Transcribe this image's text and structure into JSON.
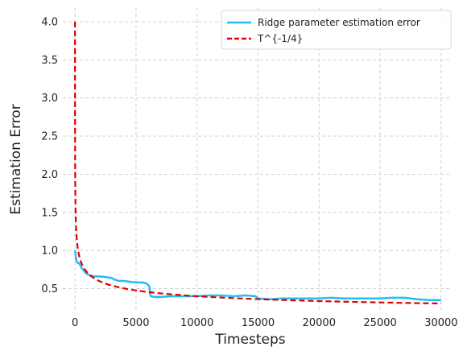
{
  "chart_data": {
    "type": "line",
    "title": "",
    "xlabel": "Timesteps",
    "ylabel": "Estimation Error",
    "xlim": [
      -1000,
      30800
    ],
    "ylim": [
      0.22,
      4.18
    ],
    "xticks": [
      0,
      5000,
      10000,
      15000,
      20000,
      25000,
      30000
    ],
    "yticks": [
      0.5,
      1.0,
      1.5,
      2.0,
      2.5,
      3.0,
      3.5,
      4.0
    ],
    "grid": true,
    "legend_position": "top-right",
    "series": [
      {
        "name": "Ridge parameter estimation error",
        "color": "#1ec0f5",
        "style": "solid",
        "x": [
          0,
          50,
          100,
          200,
          350,
          500,
          700,
          900,
          1100,
          1300,
          1600,
          2000,
          2500,
          3000,
          3200,
          3600,
          4000,
          4500,
          5000,
          5500,
          5800,
          6000,
          6100,
          6150,
          6200,
          6500,
          7000,
          8000,
          9000,
          10000,
          11000,
          12000,
          13000,
          14000,
          14800,
          15000,
          16000,
          17000,
          18000,
          19000,
          20000,
          21000,
          22000,
          23000,
          24000,
          25000,
          26000,
          27000,
          28000,
          29000,
          30000
        ],
        "y": [
          1.0,
          0.94,
          0.87,
          0.84,
          0.83,
          0.78,
          0.74,
          0.7,
          0.68,
          0.67,
          0.66,
          0.66,
          0.65,
          0.64,
          0.62,
          0.6,
          0.6,
          0.59,
          0.58,
          0.58,
          0.57,
          0.55,
          0.52,
          0.44,
          0.4,
          0.39,
          0.39,
          0.4,
          0.4,
          0.4,
          0.41,
          0.41,
          0.4,
          0.41,
          0.4,
          0.37,
          0.36,
          0.37,
          0.37,
          0.37,
          0.37,
          0.38,
          0.37,
          0.37,
          0.37,
          0.37,
          0.38,
          0.38,
          0.36,
          0.35,
          0.35
        ]
      },
      {
        "name": "T^{-1/4}",
        "color": "#e00000",
        "style": "dashed",
        "formula": "4 * (t + 1)^(-1/4)"
      }
    ]
  }
}
